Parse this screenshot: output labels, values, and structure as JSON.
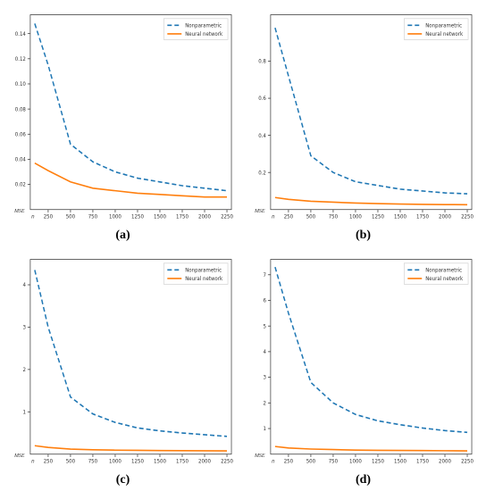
{
  "global": {
    "x_ticks": [
      250,
      500,
      750,
      1000,
      1250,
      1500,
      1750,
      2000,
      2250
    ],
    "x_values": [
      100,
      250,
      500,
      750,
      1000,
      1250,
      1500,
      1750,
      2000,
      2250
    ],
    "xlim": [
      50,
      2300
    ],
    "legend": {
      "items": [
        {
          "label": "Nonparametric",
          "color": "#1f77b4",
          "dash": "5,3"
        },
        {
          "label": "Neural network",
          "color": "#ff7f0e",
          "dash": ""
        }
      ],
      "position": "upper-right",
      "fontsize": 5.5
    },
    "y_label": "MSE",
    "background_color": "#ffffff",
    "frame_color": "#333333",
    "tick_fontsize": 5.5,
    "caption_fontsize": 14,
    "line_width": 1.5
  },
  "panels": [
    {
      "caption": "(a)",
      "ylim": [
        0.0,
        0.155
      ],
      "y_ticks": [
        0.02,
        0.04,
        0.06,
        0.08,
        0.1,
        0.12,
        0.14
      ],
      "y_tick_labels": [
        "0.02",
        "0.04",
        "0.06",
        "0.08",
        "0.10",
        "0.12",
        "0.14"
      ],
      "series": [
        {
          "style": 0,
          "y": [
            0.148,
            0.115,
            0.052,
            0.038,
            0.03,
            0.025,
            0.022,
            0.019,
            0.017,
            0.015
          ]
        },
        {
          "style": 1,
          "y": [
            0.037,
            0.031,
            0.022,
            0.017,
            0.015,
            0.013,
            0.012,
            0.011,
            0.01,
            0.01
          ]
        }
      ]
    },
    {
      "caption": "(b)",
      "ylim": [
        0.0,
        1.05
      ],
      "y_ticks": [
        0.2,
        0.4,
        0.6,
        0.8
      ],
      "y_tick_labels": [
        "0.2",
        "0.4",
        "0.6",
        "0.8"
      ],
      "series": [
        {
          "style": 0,
          "y": [
            0.98,
            0.72,
            0.29,
            0.2,
            0.15,
            0.13,
            0.11,
            0.1,
            0.09,
            0.085
          ]
        },
        {
          "style": 1,
          "y": [
            0.065,
            0.055,
            0.045,
            0.04,
            0.035,
            0.032,
            0.03,
            0.028,
            0.027,
            0.026
          ]
        }
      ]
    },
    {
      "caption": "(c)",
      "ylim": [
        0.0,
        4.6
      ],
      "y_ticks": [
        1,
        2,
        3,
        4
      ],
      "y_tick_labels": [
        "1",
        "2",
        "3",
        "4"
      ],
      "series": [
        {
          "style": 0,
          "y": [
            4.35,
            3.0,
            1.35,
            0.95,
            0.75,
            0.62,
            0.55,
            0.5,
            0.46,
            0.42
          ]
        },
        {
          "style": 1,
          "y": [
            0.2,
            0.16,
            0.12,
            0.105,
            0.095,
            0.09,
            0.085,
            0.082,
            0.08,
            0.078
          ]
        }
      ]
    },
    {
      "caption": "(d)",
      "ylim": [
        0.0,
        7.6
      ],
      "y_ticks": [
        1,
        2,
        3,
        4,
        5,
        6,
        7
      ],
      "y_tick_labels": [
        "1",
        "2",
        "3",
        "4",
        "5",
        "6",
        "7"
      ],
      "series": [
        {
          "style": 0,
          "y": [
            7.3,
            5.5,
            2.8,
            2.0,
            1.55,
            1.3,
            1.15,
            1.02,
            0.92,
            0.85
          ]
        },
        {
          "style": 1,
          "y": [
            0.3,
            0.24,
            0.2,
            0.18,
            0.16,
            0.15,
            0.145,
            0.14,
            0.135,
            0.13
          ]
        }
      ]
    }
  ]
}
